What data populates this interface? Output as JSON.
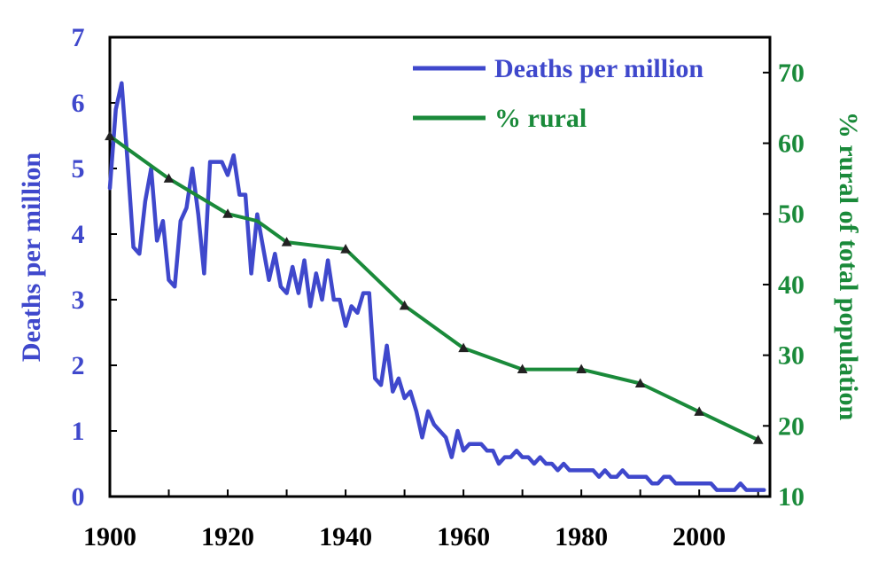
{
  "chart_data": {
    "type": "line",
    "title": "",
    "xlabel": "",
    "ylabel_left": "Deaths per million",
    "ylabel_right": "% rural of total population",
    "xlim": [
      1900,
      2012
    ],
    "ylim_left": [
      0,
      7
    ],
    "ylim_right": [
      10,
      75
    ],
    "x_ticks": [
      "1900",
      "1920",
      "1940",
      "1960",
      "1980",
      "2000"
    ],
    "y_left_ticks": [
      "0",
      "1",
      "2",
      "3",
      "4",
      "5",
      "6",
      "7"
    ],
    "y_right_ticks": [
      "10",
      "20",
      "30",
      "40",
      "50",
      "60",
      "70"
    ],
    "legend_position": "top-right",
    "grid": false,
    "series": [
      {
        "name": "Deaths per million",
        "axis": "left",
        "color": "#3f48cc",
        "x": [
          1900,
          1901,
          1902,
          1903,
          1904,
          1905,
          1906,
          1907,
          1908,
          1909,
          1910,
          1911,
          1912,
          1913,
          1914,
          1915,
          1916,
          1917,
          1918,
          1919,
          1920,
          1921,
          1922,
          1923,
          1924,
          1925,
          1926,
          1927,
          1928,
          1929,
          1930,
          1931,
          1932,
          1933,
          1934,
          1935,
          1936,
          1937,
          1938,
          1939,
          1940,
          1941,
          1942,
          1943,
          1944,
          1945,
          1946,
          1947,
          1948,
          1949,
          1950,
          1951,
          1952,
          1953,
          1954,
          1955,
          1956,
          1957,
          1958,
          1959,
          1960,
          1961,
          1962,
          1963,
          1964,
          1965,
          1966,
          1967,
          1968,
          1969,
          1970,
          1971,
          1972,
          1973,
          1974,
          1975,
          1976,
          1977,
          1978,
          1979,
          1980,
          1981,
          1982,
          1983,
          1984,
          1985,
          1986,
          1987,
          1988,
          1989,
          1990,
          1991,
          1992,
          1993,
          1994,
          1995,
          1996,
          1997,
          1998,
          1999,
          2000,
          2001,
          2002,
          2003,
          2004,
          2005,
          2006,
          2007,
          2008,
          2009,
          2010,
          2011
        ],
        "y": [
          4.7,
          5.9,
          6.3,
          5.1,
          3.8,
          3.7,
          4.5,
          5.0,
          3.9,
          4.2,
          3.3,
          3.2,
          4.2,
          4.4,
          5.0,
          4.3,
          3.4,
          5.1,
          5.1,
          5.1,
          4.9,
          5.2,
          4.6,
          4.6,
          3.4,
          4.3,
          3.8,
          3.3,
          3.7,
          3.2,
          3.1,
          3.5,
          3.1,
          3.6,
          2.9,
          3.4,
          3.0,
          3.6,
          3.0,
          3.0,
          2.6,
          2.9,
          2.8,
          3.1,
          3.1,
          1.8,
          1.7,
          2.3,
          1.6,
          1.8,
          1.5,
          1.6,
          1.3,
          0.9,
          1.3,
          1.1,
          1.0,
          0.9,
          0.6,
          1.0,
          0.7,
          0.8,
          0.8,
          0.8,
          0.7,
          0.7,
          0.5,
          0.6,
          0.6,
          0.7,
          0.6,
          0.6,
          0.5,
          0.6,
          0.5,
          0.5,
          0.4,
          0.5,
          0.4,
          0.4,
          0.4,
          0.4,
          0.4,
          0.3,
          0.4,
          0.3,
          0.3,
          0.4,
          0.3,
          0.3,
          0.3,
          0.3,
          0.2,
          0.2,
          0.3,
          0.3,
          0.2,
          0.2,
          0.2,
          0.2,
          0.2,
          0.2,
          0.2,
          0.1,
          0.1,
          0.1,
          0.1,
          0.2,
          0.1,
          0.1,
          0.1,
          0.1
        ]
      },
      {
        "name": "% rural",
        "axis": "right",
        "color": "#1a8a3a",
        "x": [
          1900,
          1910,
          1920,
          1925,
          1930,
          1935,
          1940,
          1950,
          1960,
          1970,
          1980,
          1990,
          2000,
          2010
        ],
        "y": [
          61,
          55,
          50,
          49,
          46,
          45.5,
          45,
          37,
          31,
          28,
          28,
          26,
          22,
          18
        ]
      }
    ]
  }
}
